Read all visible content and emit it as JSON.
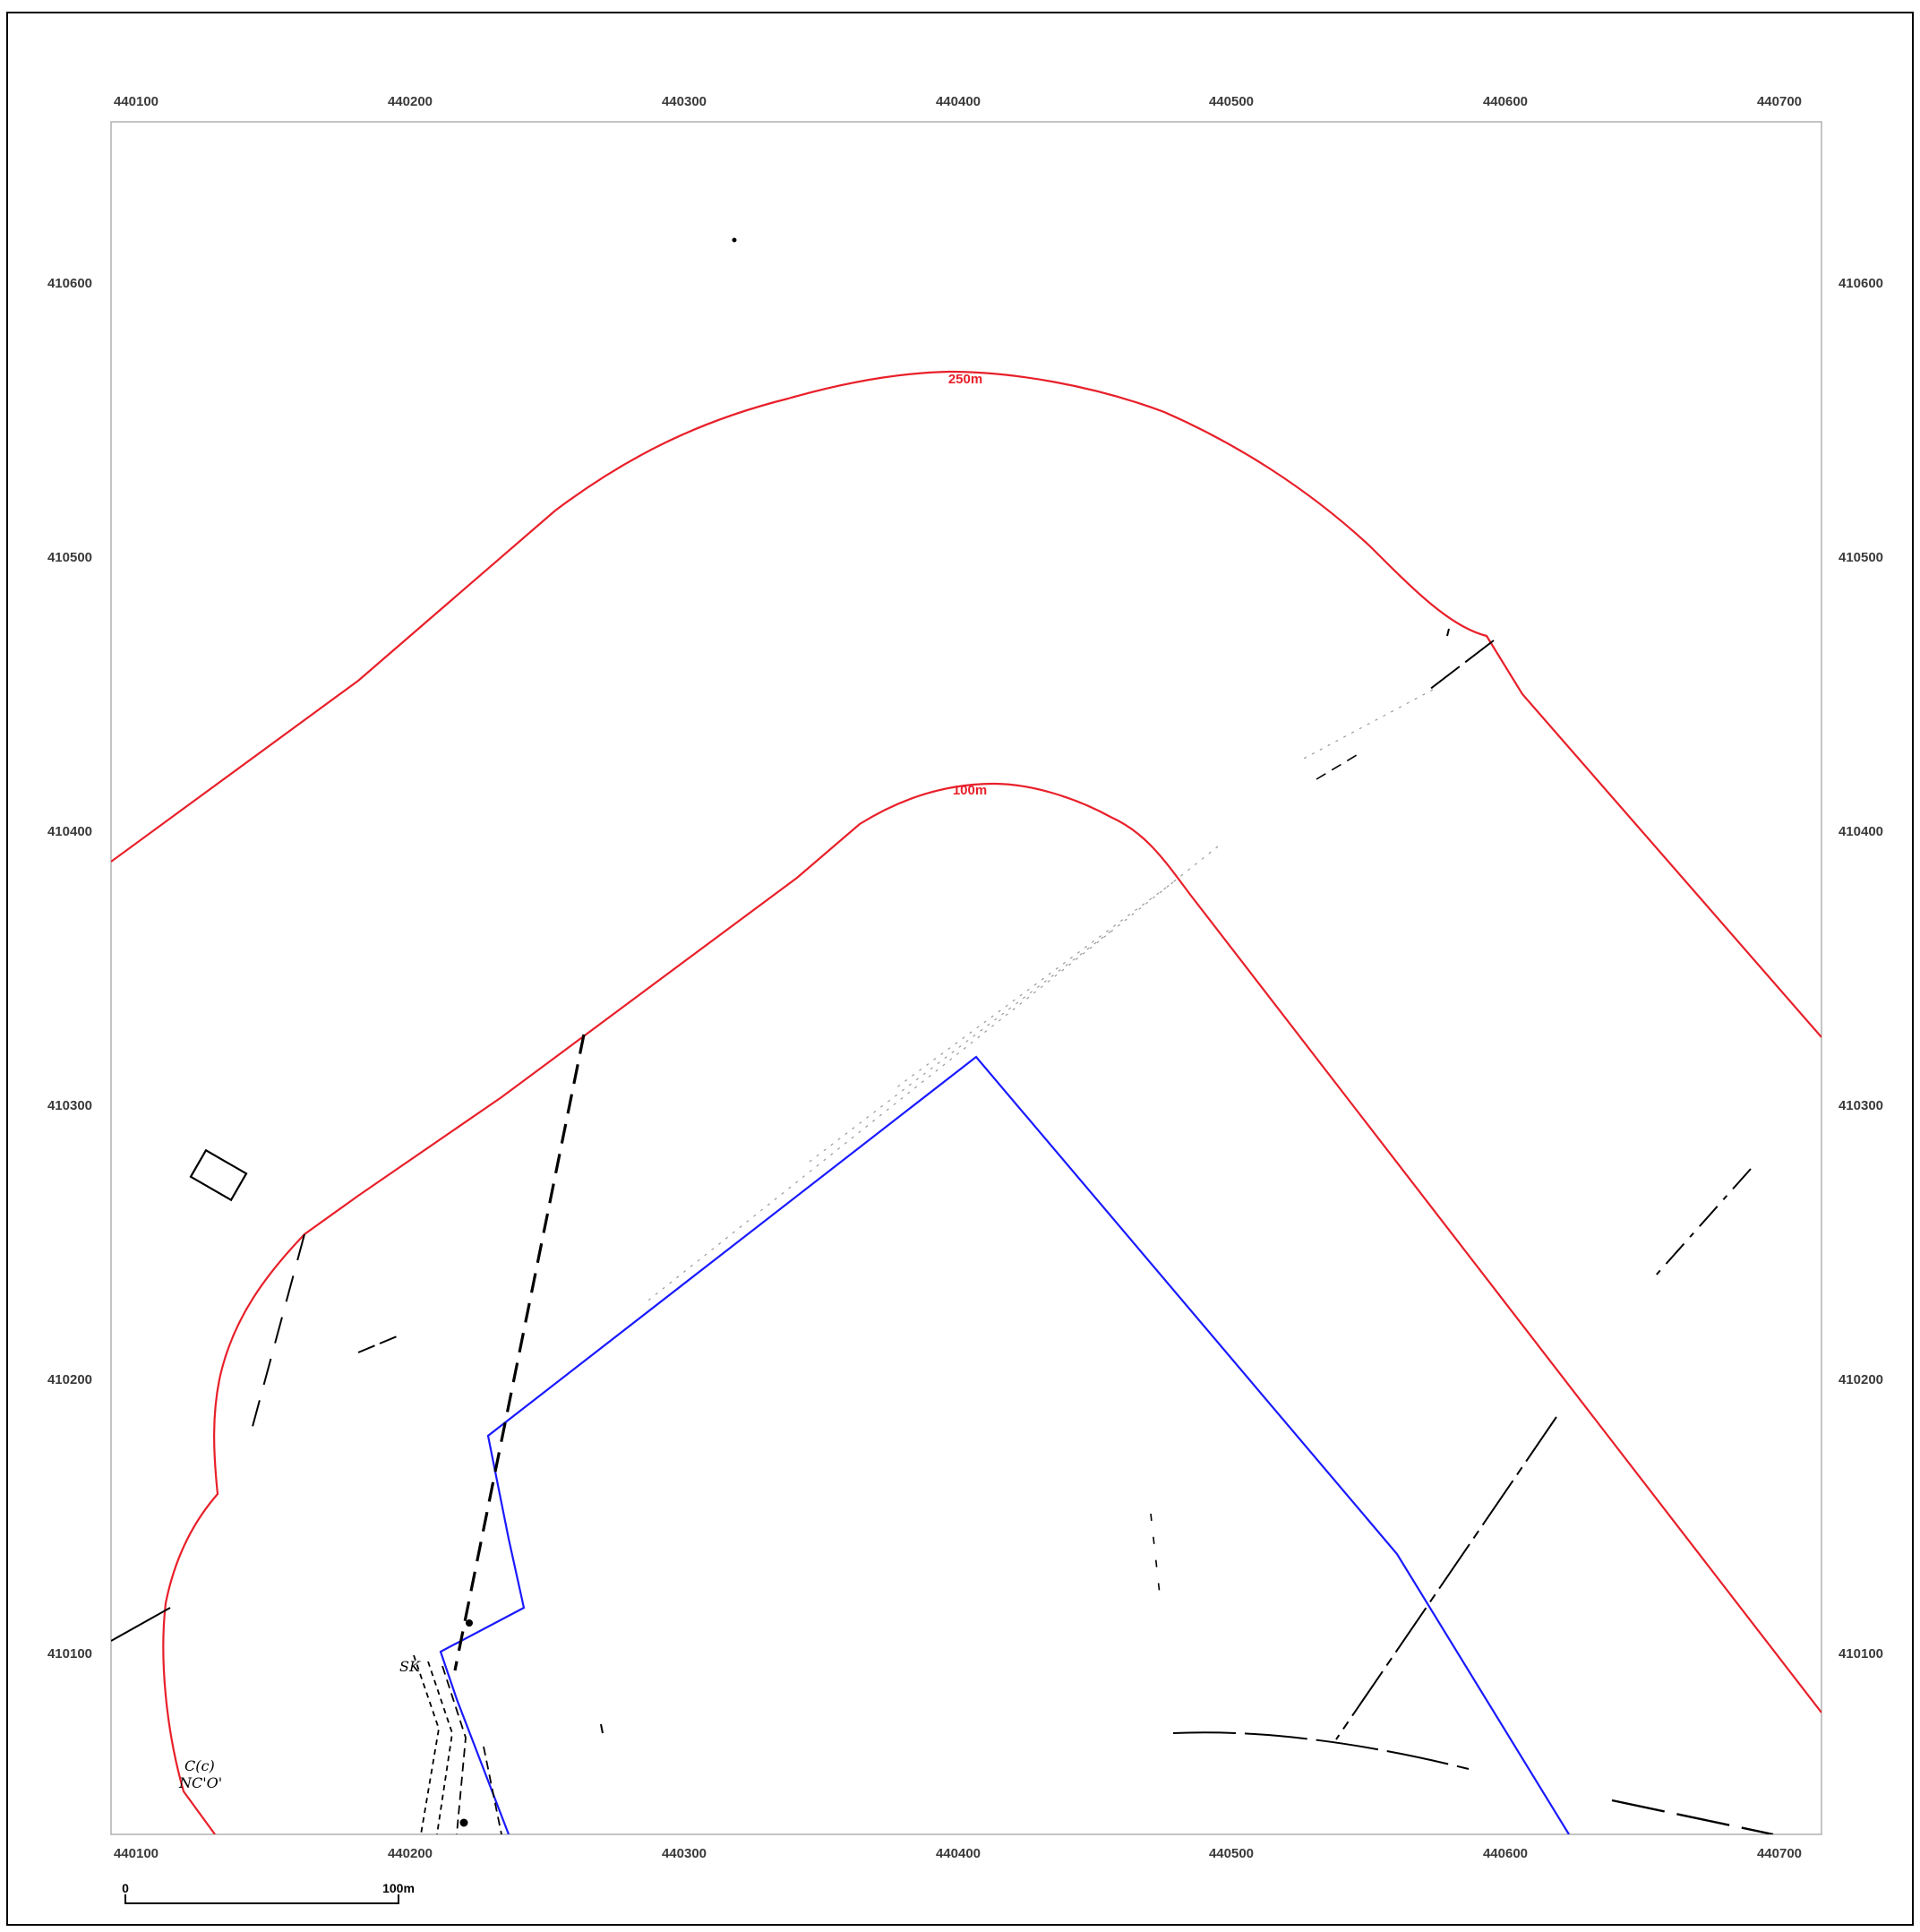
{
  "map": {
    "easting_ticks": [
      "440100",
      "440200",
      "440300",
      "440400",
      "440500",
      "440600",
      "440700"
    ],
    "northing_ticks": [
      "410600",
      "410500",
      "410400",
      "410300",
      "410200",
      "410100"
    ],
    "buffers": [
      {
        "label": "250m",
        "color": "#e8202a"
      },
      {
        "label": "100m",
        "color": "#e8202a"
      }
    ],
    "site_boundary_color": "#1a1aff",
    "scale_bar": {
      "start_label": "0",
      "end_label": "100m"
    },
    "annotations": {
      "note_line1": "C(c)",
      "note_line2": "NC'O'",
      "note_sk": "SK"
    }
  }
}
